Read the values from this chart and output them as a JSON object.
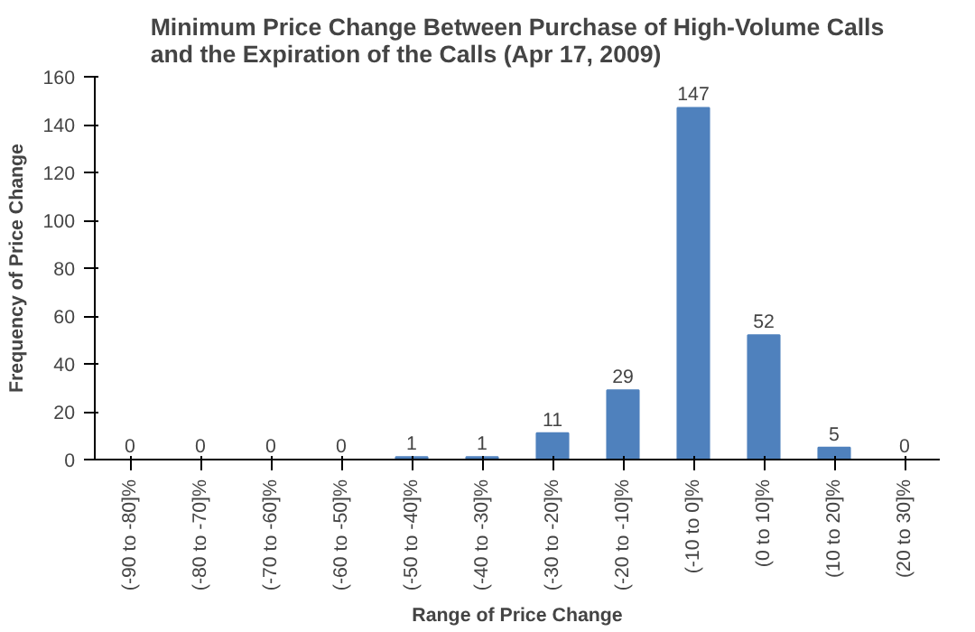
{
  "chart_data": {
    "type": "bar",
    "title": "Minimum Price Change Between Purchase of High-Volume Calls\nand the Expiration of the Calls (Apr 17, 2009)",
    "xlabel": "Range of Price Change",
    "ylabel": "Frequency of Price Change",
    "categories": [
      "(-90 to -80]%",
      "(-80 to -70]%",
      "(-70 to -60]%",
      "(-60 to -50]%",
      "(-50 to -40]%",
      "(-40 to -30]%",
      "(-30 to -20]%",
      "(-20 to -10]%",
      "(-10 to 0]%",
      "(0 to 10]%",
      "(10 to 20]%",
      "(20 to 30]%"
    ],
    "values": [
      0,
      0,
      0,
      0,
      1,
      1,
      11,
      29,
      147,
      52,
      5,
      0
    ],
    "color": "#4f81bd",
    "ylim": [
      0,
      160
    ],
    "yticks": [
      0,
      20,
      40,
      60,
      80,
      100,
      120,
      140,
      160
    ],
    "data_labels": true,
    "grid": false
  }
}
